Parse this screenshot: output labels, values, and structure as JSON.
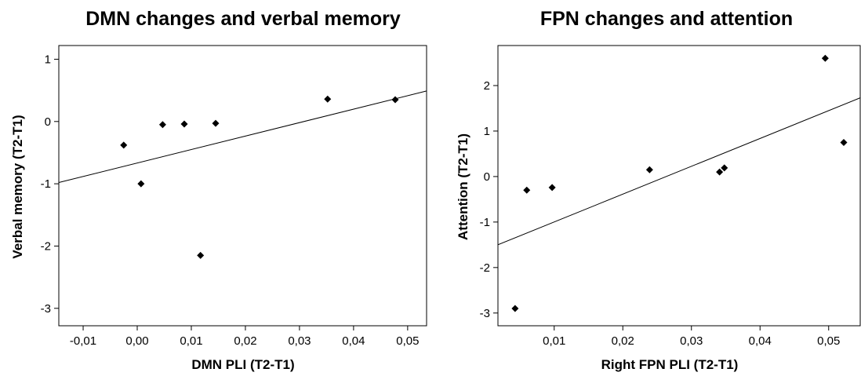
{
  "chart_data": [
    {
      "type": "scatter",
      "title": "DMN changes and verbal memory",
      "xlabel": "DMN PLI (T2-T1)",
      "ylabel": "Verbal memory (T2-T1)",
      "xlim": [
        -0.0145,
        0.0535
      ],
      "ylim": [
        -3.28,
        1.22
      ],
      "x_ticks": [
        -0.01,
        0.0,
        0.01,
        0.02,
        0.03,
        0.04,
        0.05
      ],
      "x_tick_labels": [
        "-0,01",
        "0,00",
        "0,01",
        "0,02",
        "0,03",
        "0,04",
        "0,05"
      ],
      "y_ticks": [
        1,
        0,
        -1,
        -2,
        -3
      ],
      "y_tick_labels": [
        "1",
        "0",
        "-1",
        "-2",
        "-3"
      ],
      "grid": false,
      "points": [
        {
          "x": -0.0025,
          "y": -0.38
        },
        {
          "x": 0.0007,
          "y": -1.0
        },
        {
          "x": 0.0047,
          "y": -0.05
        },
        {
          "x": 0.0087,
          "y": -0.04
        },
        {
          "x": 0.0117,
          "y": -2.15
        },
        {
          "x": 0.0145,
          "y": -0.03
        },
        {
          "x": 0.0352,
          "y": 0.36
        },
        {
          "x": 0.0477,
          "y": 0.35
        }
      ],
      "fit_line": {
        "x": [
          -0.0145,
          0.0535
        ],
        "y": [
          -0.98,
          0.49
        ]
      },
      "marker_color": "#000000",
      "line_color": "#000000"
    },
    {
      "type": "scatter",
      "title": "FPN changes and attention",
      "xlabel": "Right FPN PLI (T2-T1)",
      "ylabel": "Attention (T2-T1)",
      "xlim": [
        0.0018,
        0.0546
      ],
      "ylim": [
        -3.28,
        2.88
      ],
      "x_ticks": [
        0.01,
        0.02,
        0.03,
        0.04,
        0.05
      ],
      "x_tick_labels": [
        "0,01",
        "0,02",
        "0,03",
        "0,04",
        "0,05"
      ],
      "y_ticks": [
        2,
        1,
        0,
        -1,
        -2,
        -3
      ],
      "y_tick_labels": [
        "2",
        "1",
        "0",
        "-1",
        "-2",
        "-3"
      ],
      "grid": false,
      "points": [
        {
          "x": 0.0043,
          "y": -2.9
        },
        {
          "x": 0.006,
          "y": -0.3
        },
        {
          "x": 0.0097,
          "y": -0.24
        },
        {
          "x": 0.0239,
          "y": 0.15
        },
        {
          "x": 0.0341,
          "y": 0.1
        },
        {
          "x": 0.0348,
          "y": 0.19
        },
        {
          "x": 0.0495,
          "y": 2.6
        },
        {
          "x": 0.0522,
          "y": 0.75
        }
      ],
      "fit_line": {
        "x": [
          0.0018,
          0.0546
        ],
        "y": [
          -1.5,
          1.73
        ]
      },
      "marker_color": "#000000",
      "line_color": "#000000"
    }
  ]
}
